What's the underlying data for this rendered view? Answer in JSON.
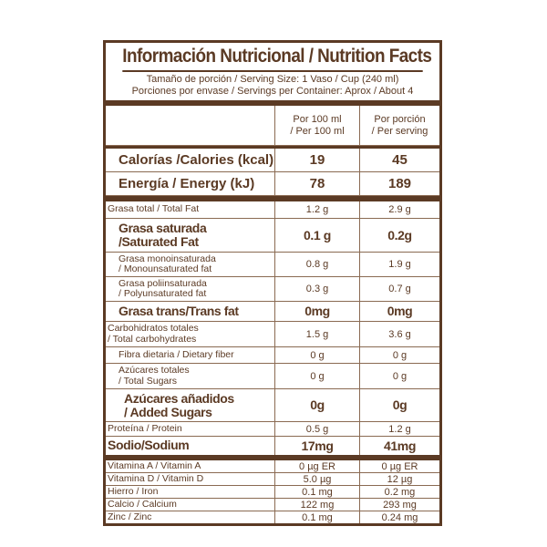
{
  "title": "Información Nutricional / Nutrition Facts",
  "serving_size": "Tamaño de porción / Serving Size: 1 Vaso / Cup (240 ml)",
  "servings_per_container": "Porciones por envase / Servings per Container: Aprox / About 4",
  "columns": {
    "per100_line1": "Por 100 ml",
    "per100_line2": "/ Per 100 ml",
    "perserving_line1": "Por porción",
    "perserving_line2": "/ Per serving"
  },
  "energy": {
    "calories_label": "Calorías /Calories (kcal)",
    "calories_100": "19",
    "calories_serving": "45",
    "energy_label": "Energía / Energy (kJ)",
    "energy_100": "78",
    "energy_serving": "189"
  },
  "nutrients": [
    {
      "label_line1": "Grasa total / Total Fat",
      "label_line2": "",
      "v100": "1.2 g",
      "vserv": "2.9 g"
    },
    {
      "label_line1": "Grasa saturada",
      "label_line2": "/Saturated Fat",
      "v100": "0.1 g",
      "vserv": "0.2g"
    },
    {
      "label_line1": "Grasa monoinsaturada",
      "label_line2": "/ Monounsaturated fat",
      "v100": "0.8 g",
      "vserv": "1.9 g"
    },
    {
      "label_line1": "Grasa poliinsaturada",
      "label_line2": "/ Polyunsaturated fat",
      "v100": "0.3 g",
      "vserv": "0.7 g"
    },
    {
      "label_line1": "Grasa trans/Trans fat",
      "label_line2": "",
      "v100": "0mg",
      "vserv": "0mg"
    },
    {
      "label_line1": "Carbohidratos totales",
      "label_line2": "/ Total carbohydrates",
      "v100": "1.5 g",
      "vserv": "3.6 g"
    },
    {
      "label_line1": "Fibra dietaria / Dietary fiber",
      "label_line2": "",
      "v100": "0 g",
      "vserv": "0 g"
    },
    {
      "label_line1": "Azúcares totales",
      "label_line2": "/ Total Sugars",
      "v100": "0 g",
      "vserv": "0 g"
    },
    {
      "label_line1": "Azúcares añadidos",
      "label_line2": "/ Added Sugars",
      "v100": "0g",
      "vserv": "0g"
    },
    {
      "label_line1": "Proteína / Protein",
      "label_line2": "",
      "v100": "0.5 g",
      "vserv": "1.2 g"
    },
    {
      "label_line1": "Sodio/Sodium",
      "label_line2": "",
      "v100": "17mg",
      "vserv": "41mg"
    }
  ],
  "vitamins": [
    {
      "label": "Vitamina A / Vitamin A",
      "v100": "0 µg ER",
      "vserv": "0 µg ER"
    },
    {
      "label": "Vitamina D / Vitamin D",
      "v100": "5.0 µg",
      "vserv": "12 µg"
    },
    {
      "label": "Hierro / Iron",
      "v100": "0.1 mg",
      "vserv": "0.2 mg"
    },
    {
      "label": "Calcio / Calcium",
      "v100": "122 mg",
      "vserv": "293 mg"
    },
    {
      "label": "Zinc / Zinc",
      "v100": "0.1 mg",
      "vserv": "0.24 mg"
    }
  ],
  "colors": {
    "brand_brown": "#5b3a24",
    "background": "#ffffff"
  }
}
